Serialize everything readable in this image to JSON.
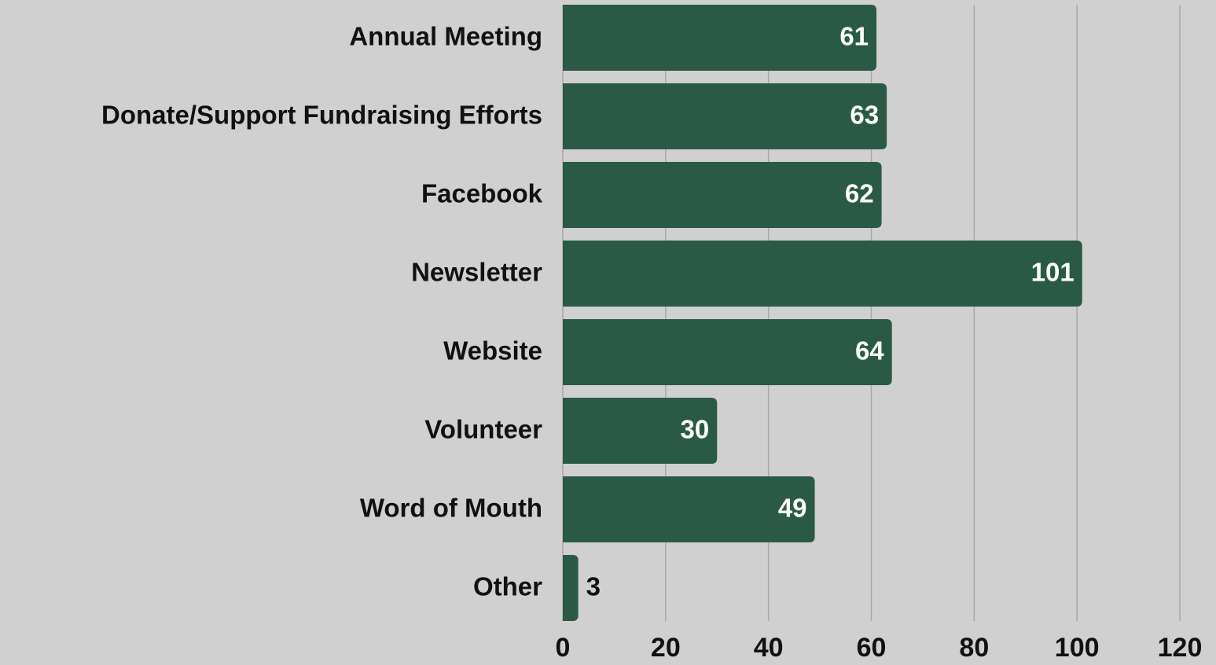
{
  "chart_data": {
    "type": "bar",
    "orientation": "horizontal",
    "categories": [
      "Annual Meeting",
      "Donate/Support Fundraising Efforts",
      "Facebook",
      "Newsletter",
      "Website",
      "Volunteer",
      "Word of Mouth",
      "Other"
    ],
    "values": [
      61,
      63,
      62,
      101,
      64,
      30,
      49,
      3
    ],
    "color": "#2a5a45",
    "xlim": [
      0,
      120
    ],
    "xticks": [
      0,
      20,
      40,
      60,
      80,
      100,
      120
    ],
    "grid": true
  }
}
